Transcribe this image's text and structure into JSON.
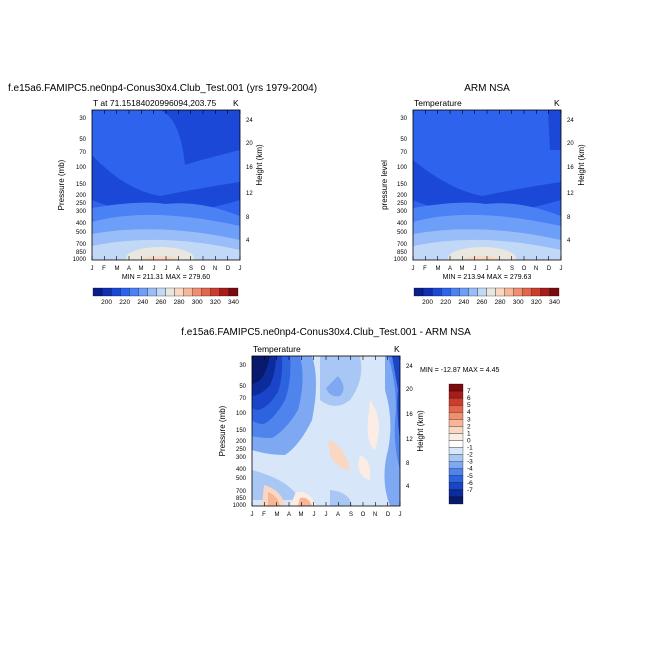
{
  "panels": [
    {
      "id": "model",
      "title": "f.e15a6.FAMIPC5.ne0np4-Conus30x4.Club_Test.001 (yrs 1979-2004)",
      "subtitle_left": "T at 71.15184020996094,203.75",
      "subtitle_right": "K",
      "ylabel": "Pressure (mb)",
      "ylabel_right": "Height (km)",
      "stats": "MIN = 211.31   MAX = 279.60"
    },
    {
      "id": "obs",
      "title": "ARM NSA",
      "subtitle_left": "Temperature",
      "subtitle_right": "K",
      "ylabel": "pressure level",
      "ylabel_right": "Height (km)",
      "stats": "MIN = 213.94   MAX = 279.63"
    },
    {
      "id": "diff",
      "title": "f.e15a6.FAMIPC5.ne0np4-Conus30x4.Club_Test.001 - ARM NSA",
      "subtitle_left": "Temperature",
      "subtitle_right": "K",
      "ylabel": "Pressure (mb)",
      "ylabel_right": "Height (km)",
      "stats": "MIN = -12.87   MAX =   4.45"
    }
  ],
  "chart_data": [
    {
      "type": "heatmap",
      "panel": "model",
      "x_ticks": [
        "J",
        "F",
        "M",
        "A",
        "M",
        "J",
        "J",
        "A",
        "S",
        "O",
        "N",
        "D",
        "J"
      ],
      "y_ticks_pressure": [
        "30",
        "50",
        "70",
        "100",
        "150",
        "200",
        "250",
        "300",
        "400",
        "500",
        "700",
        "850",
        "1000"
      ],
      "y_ticks_height": [
        "24",
        "20",
        "16",
        "12",
        "8",
        "4"
      ],
      "min": 211.31,
      "max": 279.6,
      "units": "K"
    },
    {
      "type": "heatmap",
      "panel": "obs",
      "x_ticks": [
        "J",
        "F",
        "M",
        "A",
        "M",
        "J",
        "J",
        "A",
        "S",
        "O",
        "N",
        "D",
        "J"
      ],
      "y_ticks_pressure": [
        "30",
        "50",
        "70",
        "100",
        "150",
        "200",
        "250",
        "300",
        "400",
        "500",
        "700",
        "850",
        "1000"
      ],
      "y_ticks_height": [
        "24",
        "20",
        "16",
        "12",
        "8",
        "4"
      ],
      "min": 213.94,
      "max": 279.63,
      "units": "K"
    },
    {
      "type": "heatmap",
      "panel": "diff",
      "x_ticks": [
        "J",
        "F",
        "M",
        "A",
        "M",
        "J",
        "J",
        "A",
        "S",
        "O",
        "N",
        "D",
        "J"
      ],
      "y_ticks_pressure": [
        "30",
        "50",
        "70",
        "100",
        "150",
        "200",
        "250",
        "300",
        "400",
        "500",
        "700",
        "850",
        "1000"
      ],
      "y_ticks_height": [
        "24",
        "20",
        "16",
        "12",
        "8",
        "4"
      ],
      "min": -12.87,
      "max": 4.45,
      "units": "K"
    }
  ],
  "colorbar_temp": {
    "labels": [
      "200",
      "220",
      "240",
      "260",
      "280",
      "300",
      "320",
      "340"
    ],
    "colors": [
      "#0a1e8c",
      "#0f2fb4",
      "#1c48d8",
      "#2e63ee",
      "#4a82f6",
      "#6e9ff8",
      "#98bdf8",
      "#c2d8f7",
      "#eae6e0",
      "#f9d7c2",
      "#f7b698",
      "#f08e6e",
      "#e2654c",
      "#cc3d2e",
      "#a81c1c",
      "#7a0c10"
    ]
  },
  "colorbar_diff": {
    "labels": [
      "7",
      "6",
      "5",
      "4",
      "3",
      "2",
      "1",
      "0",
      "-1",
      "-2",
      "-3",
      "-4",
      "-5",
      "-6",
      "-7"
    ],
    "colors": [
      "#7a0c10",
      "#a81c1c",
      "#cc3d2e",
      "#e2654c",
      "#f08e6e",
      "#f7b698",
      "#f9d7c2",
      "#fbece4",
      "#ffffff",
      "#d7e6f9",
      "#a9c7f5",
      "#7ea8f2",
      "#4f84ec",
      "#2e63e0",
      "#1a45c8",
      "#0d2c9c",
      "#071a6e"
    ]
  }
}
